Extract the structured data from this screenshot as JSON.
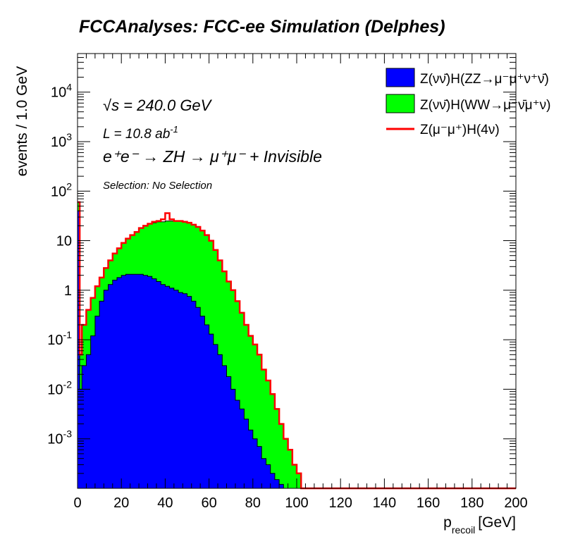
{
  "chart_data": {
    "type": "area",
    "title": "FCCAnalyses: FCC-ee Simulation (Delphes)",
    "xlabel_main": "p",
    "xlabel_sub": "recoil",
    "xlabel_unit": "[GeV]",
    "ylabel": "events / 1.0 GeV",
    "xlim": [
      0,
      200
    ],
    "ylim": [
      0.0001,
      60000
    ],
    "y_scale": "log",
    "x_ticks": [
      "0",
      "20",
      "40",
      "60",
      "80",
      "100",
      "120",
      "140",
      "160",
      "180",
      "200"
    ],
    "x_tick_values": [
      0,
      20,
      40,
      60,
      80,
      100,
      120,
      140,
      160,
      180,
      200
    ],
    "y_ticks": [
      {
        "value": 0.001,
        "base": "10",
        "exp": "-3"
      },
      {
        "value": 0.01,
        "base": "10",
        "exp": "-2"
      },
      {
        "value": 0.1,
        "base": "10",
        "exp": "-1"
      },
      {
        "value": 1,
        "base": "1",
        "exp": ""
      },
      {
        "value": 10,
        "base": "10",
        "exp": ""
      },
      {
        "value": 100,
        "base": "10",
        "exp": "2"
      },
      {
        "value": 1000,
        "base": "10",
        "exp": "3"
      },
      {
        "value": 10000,
        "base": "10",
        "exp": "4"
      }
    ],
    "annotations": {
      "sqrt_s": "√s = 240.0 GeV",
      "lumi_main": "L = 10.8 ab",
      "lumi_exp": "-1",
      "process": "e⁺e⁻ → ZH → μ⁺μ⁻ + Invisible",
      "selection": "Selection: No Selection"
    },
    "legend_position": "top-right",
    "x": [
      0,
      1,
      2,
      4,
      6,
      8,
      10,
      12,
      14,
      16,
      18,
      20,
      22,
      24,
      26,
      28,
      30,
      32,
      34,
      36,
      38,
      40,
      42,
      44,
      46,
      48,
      50,
      52,
      54,
      56,
      58,
      60,
      62,
      64,
      66,
      68,
      70,
      72,
      74,
      76,
      78,
      80,
      82,
      84,
      86,
      88,
      90,
      92,
      94,
      96,
      98,
      100,
      102,
      104,
      106,
      108,
      110,
      112,
      114,
      116,
      118,
      120,
      200
    ],
    "series": [
      {
        "name": "Z(νν̄)H(ZZ→μ⁻μ⁺ν⁺ν̄)",
        "color": "#0000ff",
        "kind": "stacked-fill",
        "values": [
          40,
          0.01,
          0.03,
          0.05,
          0.12,
          0.3,
          0.6,
          1.0,
          1.3,
          1.6,
          1.8,
          2.0,
          2.1,
          2.1,
          2.1,
          2.1,
          2.0,
          1.9,
          1.7,
          1.5,
          1.3,
          1.2,
          1.1,
          1.0,
          0.9,
          0.85,
          0.75,
          0.6,
          0.45,
          0.3,
          0.2,
          0.13,
          0.08,
          0.05,
          0.03,
          0.018,
          0.01,
          0.006,
          0.004,
          0.0025,
          0.0015,
          0.001,
          0.0007,
          0.0004,
          0.0003,
          0.0002,
          0.00015,
          0.00012,
          0.0001,
          0.0001,
          0.0001,
          0.0001,
          0.0001,
          0.0001,
          0.0001,
          0.0001,
          0.0001,
          0.0001,
          0.0001,
          0.0001,
          0.0001,
          0.0001,
          0.0001
        ]
      },
      {
        "name": "Z(νν̄)H(WW→μ⁻ν̄μ⁺ν)",
        "color": "#00ff00",
        "kind": "stacked-fill",
        "values": [
          60,
          0.05,
          0.2,
          0.4,
          0.7,
          1.2,
          1.8,
          2.8,
          4,
          5.5,
          7,
          9,
          11,
          13,
          15,
          18,
          20,
          22,
          23,
          24,
          24,
          25,
          25,
          25,
          25,
          24,
          23,
          21,
          19,
          16,
          13,
          10,
          6.5,
          4,
          2.4,
          1.5,
          1.0,
          0.6,
          0.35,
          0.2,
          0.12,
          0.08,
          0.05,
          0.025,
          0.015,
          0.008,
          0.004,
          0.002,
          0.001,
          0.0006,
          0.0003,
          0.0002,
          0.0001,
          0.0001,
          0.0001,
          0.0001,
          0.0001,
          0.0001,
          0.0001,
          0.0001,
          0.0001,
          0.0001,
          0.0001
        ]
      },
      {
        "name": "Z(μ⁻μ⁺)H(4ν)",
        "color": "#ff0000",
        "kind": "line",
        "values": [
          60,
          0.05,
          0.2,
          0.4,
          0.7,
          1.2,
          1.8,
          2.8,
          4,
          5.5,
          7,
          9,
          11,
          13,
          15,
          18,
          20,
          22,
          24,
          25,
          27,
          36,
          27,
          25,
          25,
          24,
          23,
          21,
          19,
          16,
          13,
          10,
          6.5,
          4,
          2.4,
          1.5,
          1.0,
          0.6,
          0.35,
          0.2,
          0.12,
          0.08,
          0.05,
          0.025,
          0.015,
          0.008,
          0.004,
          0.002,
          0.001,
          0.0006,
          0.0003,
          0.0002,
          0.0001,
          0.0001,
          0.0001,
          0.0001,
          0.0001,
          0.0001,
          0.0001,
          0.0001,
          0.0001,
          0.0001,
          0.0001
        ]
      }
    ]
  }
}
